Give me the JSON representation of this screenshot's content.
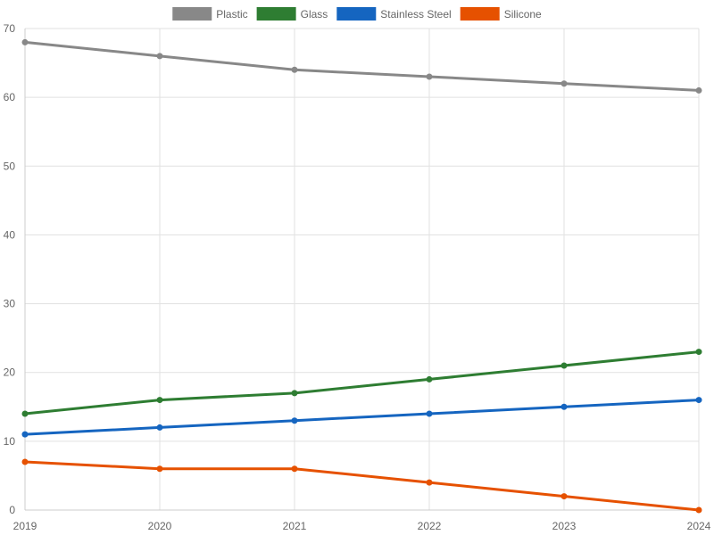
{
  "chart_data": {
    "type": "line",
    "x": [
      "2019",
      "2020",
      "2021",
      "2022",
      "2023",
      "2024"
    ],
    "ylim": [
      0,
      70
    ],
    "y_ticks": [
      0,
      10,
      20,
      30,
      40,
      50,
      60,
      70
    ],
    "grid": true,
    "legend_position": "top-center",
    "series": [
      {
        "name": "Plastic",
        "color": "#888888",
        "values": [
          68,
          66,
          64,
          63,
          62,
          61
        ]
      },
      {
        "name": "Glass",
        "color": "#2e7d32",
        "values": [
          14,
          16,
          17,
          19,
          21,
          23
        ]
      },
      {
        "name": "Stainless Steel",
        "color": "#1565c0",
        "values": [
          11,
          12,
          13,
          14,
          15,
          16
        ]
      },
      {
        "name": "Silicone",
        "color": "#e65100",
        "values": [
          7,
          6,
          6,
          4,
          2,
          0
        ]
      }
    ]
  }
}
